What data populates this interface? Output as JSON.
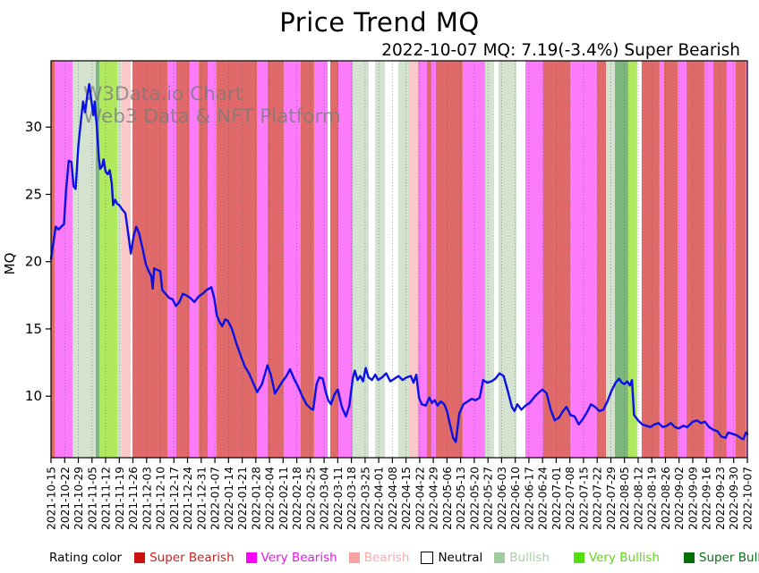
{
  "title": "Price Trend MQ",
  "subtitle": "2022-10-07 MQ: 7.19(-3.4%) Super Bearish",
  "watermark": {
    "line1": "W3Data.io Chart",
    "line2": "Web3 Data & NFT Platform"
  },
  "legend": {
    "lead_label": "Rating color",
    "items": [
      {
        "id": "super_bearish",
        "label": "Super Bearish",
        "swatch": "#cc1111",
        "text_color": "#cc2222",
        "band_fill": "#e06a6a",
        "swatch_border": "none"
      },
      {
        "id": "very_bearish",
        "label": "Very Bearish",
        "swatch": "#ff00ff",
        "text_color": "#ee11ee",
        "band_fill": "#fb7bfb",
        "swatch_border": "none"
      },
      {
        "id": "bearish",
        "label": "Bearish",
        "swatch": "#f9a3a3",
        "text_color": "#f9aaaa",
        "band_fill": "#fbc8c8",
        "swatch_border": "none"
      },
      {
        "id": "neutral",
        "label": "Neutral",
        "swatch": "#ffffff",
        "text_color": "#000000",
        "band_fill": "#ffffff",
        "swatch_border": "#000000"
      },
      {
        "id": "bullish",
        "label": "Bullish",
        "swatch": "#9fcb9f",
        "text_color": "#a9cfa9",
        "band_fill": "#d3e3d0",
        "swatch_border": "none"
      },
      {
        "id": "very_bullish",
        "label": "Very Bullish",
        "swatch": "#58dd0c",
        "text_color": "#63d61a",
        "band_fill": "#b0e95e",
        "swatch_border": "none"
      },
      {
        "id": "super_bullish",
        "label": "Super Bullish",
        "swatch": "#056d05",
        "text_color": "#0b6e1b",
        "band_fill": "#7db77d",
        "swatch_border": "none"
      }
    ]
  },
  "chart_data": {
    "type": "line",
    "title": "Price Trend MQ",
    "subtitle": "2022-10-07 MQ: 7.19(-3.4%) Super Bearish",
    "xlabel": "",
    "ylabel": "MQ",
    "yticks": [
      10,
      15,
      20,
      25,
      30
    ],
    "ylim": [
      5.4,
      34.9
    ],
    "grid": "vertical-dotted-weekly",
    "legend_position": "bottom",
    "latest": {
      "date": "2022-10-07",
      "mq": 7.19,
      "change_pct": -3.4,
      "rating": "Super Bearish"
    },
    "x_labels": [
      "2021-10-15",
      "2021-10-22",
      "2021-10-29",
      "2021-11-05",
      "2021-11-12",
      "2021-11-19",
      "2021-11-26",
      "2021-12-03",
      "2021-12-10",
      "2021-12-17",
      "2021-12-24",
      "2021-12-31",
      "2022-01-07",
      "2022-01-14",
      "2022-01-21",
      "2022-01-28",
      "2022-02-04",
      "2022-02-11",
      "2022-02-18",
      "2022-02-25",
      "2022-03-04",
      "2022-03-11",
      "2022-03-18",
      "2022-03-25",
      "2022-04-01",
      "2022-04-08",
      "2022-04-15",
      "2022-04-22",
      "2022-04-29",
      "2022-05-06",
      "2022-05-13",
      "2022-05-20",
      "2022-05-27",
      "2022-06-03",
      "2022-06-10",
      "2022-06-17",
      "2022-06-24",
      "2022-07-01",
      "2022-07-08",
      "2022-07-15",
      "2022-07-22",
      "2022-07-29",
      "2022-08-05",
      "2022-08-12",
      "2022-08-19",
      "2022-08-26",
      "2022-09-02",
      "2022-09-09",
      "2022-09-16",
      "2022-09-23",
      "2022-09-30",
      "2022-10-07"
    ],
    "bands": [
      [
        0,
        0.26,
        "super_bearish"
      ],
      [
        0.26,
        1.57,
        "very_bearish"
      ],
      [
        1.57,
        3.28,
        "bullish"
      ],
      [
        3.28,
        3.54,
        "super_bullish"
      ],
      [
        3.54,
        4.85,
        "very_bullish"
      ],
      [
        4.85,
        5.18,
        "bullish"
      ],
      [
        5.18,
        5.84,
        "bearish"
      ],
      [
        5.84,
        5.97,
        "neutral"
      ],
      [
        5.97,
        8.52,
        "super_bearish"
      ],
      [
        8.52,
        9.18,
        "very_bearish"
      ],
      [
        9.18,
        10.16,
        "super_bearish"
      ],
      [
        10.16,
        10.82,
        "very_bearish"
      ],
      [
        10.82,
        11.47,
        "super_bearish"
      ],
      [
        11.47,
        12.13,
        "very_bearish"
      ],
      [
        12.13,
        15.08,
        "super_bearish"
      ],
      [
        15.08,
        15.86,
        "very_bearish"
      ],
      [
        15.86,
        17.04,
        "super_bearish"
      ],
      [
        17.04,
        18.29,
        "very_bearish"
      ],
      [
        18.29,
        19.27,
        "super_bearish"
      ],
      [
        19.27,
        20.26,
        "very_bearish"
      ],
      [
        20.26,
        20.45,
        "neutral"
      ],
      [
        20.45,
        21.04,
        "super_bearish"
      ],
      [
        21.04,
        22.09,
        "very_bearish"
      ],
      [
        22.09,
        23.27,
        "bullish"
      ],
      [
        23.27,
        23.73,
        "neutral"
      ],
      [
        23.73,
        24.45,
        "bullish"
      ],
      [
        24.45,
        25.43,
        "neutral"
      ],
      [
        25.43,
        26.22,
        "bullish"
      ],
      [
        26.22,
        26.87,
        "bearish"
      ],
      [
        26.87,
        27.53,
        "very_bearish"
      ],
      [
        27.53,
        27.86,
        "super_bearish"
      ],
      [
        27.86,
        28.19,
        "very_bearish"
      ],
      [
        28.19,
        30.15,
        "super_bearish"
      ],
      [
        30.15,
        31.79,
        "very_bearish"
      ],
      [
        31.79,
        32.45,
        "bullish"
      ],
      [
        32.45,
        32.77,
        "neutral"
      ],
      [
        32.77,
        34.09,
        "bullish"
      ],
      [
        34.09,
        34.74,
        "neutral"
      ],
      [
        34.74,
        36.05,
        "very_bearish"
      ],
      [
        36.05,
        38.02,
        "super_bearish"
      ],
      [
        38.02,
        39.98,
        "very_bearish"
      ],
      [
        39.98,
        40.64,
        "super_bearish"
      ],
      [
        40.64,
        41.3,
        "bullish"
      ],
      [
        41.3,
        42.28,
        "super_bullish"
      ],
      [
        42.28,
        42.93,
        "very_bullish"
      ],
      [
        42.93,
        43.26,
        "neutral"
      ],
      [
        43.26,
        44.57,
        "super_bearish"
      ],
      [
        44.57,
        44.9,
        "very_bearish"
      ],
      [
        44.9,
        45.89,
        "super_bearish"
      ],
      [
        45.89,
        46.54,
        "very_bearish"
      ],
      [
        46.54,
        47.85,
        "super_bearish"
      ],
      [
        47.85,
        48.51,
        "very_bearish"
      ],
      [
        48.51,
        49.49,
        "super_bearish"
      ],
      [
        49.49,
        50.15,
        "very_bearish"
      ],
      [
        50.15,
        50.87,
        "super_bearish"
      ],
      [
        50.87,
        51,
        "very_bearish"
      ]
    ],
    "series": [
      {
        "name": "MQ",
        "color": "#0a10e6",
        "points": [
          [
            0,
            20.2
          ],
          [
            0.2,
            21.6
          ],
          [
            0.35,
            22.6
          ],
          [
            0.55,
            22.4
          ],
          [
            0.75,
            22.6
          ],
          [
            0.95,
            22.8
          ],
          [
            1.1,
            25.3
          ],
          [
            1.3,
            27.5
          ],
          [
            1.5,
            27.4
          ],
          [
            1.65,
            25.6
          ],
          [
            1.8,
            25.4
          ],
          [
            2.0,
            28.6
          ],
          [
            2.2,
            30.6
          ],
          [
            2.35,
            31.9
          ],
          [
            2.5,
            31.1
          ],
          [
            2.65,
            32.3
          ],
          [
            2.8,
            33.2
          ],
          [
            2.95,
            32.0
          ],
          [
            3.1,
            30.9
          ],
          [
            3.2,
            31.9
          ],
          [
            3.35,
            30.1
          ],
          [
            3.5,
            27.7
          ],
          [
            3.6,
            26.9
          ],
          [
            3.75,
            27.1
          ],
          [
            3.85,
            27.6
          ],
          [
            4.0,
            26.7
          ],
          [
            4.15,
            26.5
          ],
          [
            4.3,
            26.8
          ],
          [
            4.45,
            25.8
          ],
          [
            4.55,
            24.2
          ],
          [
            4.7,
            24.6
          ],
          [
            4.85,
            24.3
          ],
          [
            5.0,
            24.2
          ],
          [
            5.2,
            23.9
          ],
          [
            5.45,
            23.6
          ],
          [
            5.65,
            22.1
          ],
          [
            5.85,
            20.6
          ],
          [
            6.05,
            21.9
          ],
          [
            6.25,
            22.6
          ],
          [
            6.45,
            22.1
          ],
          [
            6.7,
            21.0
          ],
          [
            6.95,
            19.8
          ],
          [
            7.15,
            19.3
          ],
          [
            7.35,
            18.9
          ],
          [
            7.45,
            18.0
          ],
          [
            7.55,
            19.5
          ],
          [
            7.75,
            19.4
          ],
          [
            8.0,
            19.3
          ],
          [
            8.15,
            17.9
          ],
          [
            8.4,
            17.6
          ],
          [
            8.65,
            17.3
          ],
          [
            8.9,
            17.2
          ],
          [
            9.15,
            16.7
          ],
          [
            9.4,
            17.0
          ],
          [
            9.65,
            17.6
          ],
          [
            9.9,
            17.5
          ],
          [
            10.2,
            17.3
          ],
          [
            10.5,
            17.0
          ],
          [
            10.8,
            17.4
          ],
          [
            11.1,
            17.6
          ],
          [
            11.4,
            17.9
          ],
          [
            11.75,
            18.1
          ],
          [
            11.95,
            17.3
          ],
          [
            12.15,
            16.0
          ],
          [
            12.35,
            15.5
          ],
          [
            12.55,
            15.2
          ],
          [
            12.75,
            15.7
          ],
          [
            12.95,
            15.6
          ],
          [
            13.25,
            15.0
          ],
          [
            13.55,
            14.0
          ],
          [
            13.9,
            13.0
          ],
          [
            14.2,
            12.2
          ],
          [
            14.5,
            11.7
          ],
          [
            14.8,
            11.0
          ],
          [
            15.1,
            10.3
          ],
          [
            15.45,
            10.9
          ],
          [
            15.85,
            12.3
          ],
          [
            16.1,
            11.6
          ],
          [
            16.4,
            10.2
          ],
          [
            16.7,
            10.7
          ],
          [
            16.95,
            11.1
          ],
          [
            17.25,
            11.5
          ],
          [
            17.5,
            12.0
          ],
          [
            17.8,
            11.3
          ],
          [
            18.1,
            10.7
          ],
          [
            18.4,
            10.0
          ],
          [
            18.7,
            9.4
          ],
          [
            19.0,
            9.1
          ],
          [
            19.2,
            9.0
          ],
          [
            19.45,
            10.9
          ],
          [
            19.65,
            11.4
          ],
          [
            19.9,
            11.3
          ],
          [
            20.1,
            10.4
          ],
          [
            20.3,
            9.7
          ],
          [
            20.5,
            9.4
          ],
          [
            20.75,
            10.1
          ],
          [
            21.0,
            10.5
          ],
          [
            21.3,
            9.2
          ],
          [
            21.6,
            8.5
          ],
          [
            21.85,
            9.3
          ],
          [
            22.1,
            11.3
          ],
          [
            22.25,
            11.9
          ],
          [
            22.45,
            11.2
          ],
          [
            22.65,
            11.5
          ],
          [
            22.85,
            11.1
          ],
          [
            23.05,
            12.1
          ],
          [
            23.25,
            11.4
          ],
          [
            23.5,
            11.2
          ],
          [
            23.75,
            11.6
          ],
          [
            23.95,
            11.2
          ],
          [
            24.25,
            11.4
          ],
          [
            24.55,
            11.7
          ],
          [
            24.85,
            11.1
          ],
          [
            25.15,
            11.3
          ],
          [
            25.45,
            11.5
          ],
          [
            25.75,
            11.2
          ],
          [
            26.05,
            11.4
          ],
          [
            26.35,
            11.5
          ],
          [
            26.55,
            11.0
          ],
          [
            26.75,
            11.6
          ],
          [
            26.95,
            9.9
          ],
          [
            27.15,
            9.4
          ],
          [
            27.45,
            9.3
          ],
          [
            27.7,
            9.9
          ],
          [
            27.9,
            9.5
          ],
          [
            28.1,
            9.7
          ],
          [
            28.3,
            9.3
          ],
          [
            28.55,
            9.6
          ],
          [
            28.8,
            9.4
          ],
          [
            29.0,
            8.9
          ],
          [
            29.2,
            8.0
          ],
          [
            29.45,
            6.9
          ],
          [
            29.65,
            6.6
          ],
          [
            29.9,
            8.7
          ],
          [
            30.2,
            9.4
          ],
          [
            30.5,
            9.6
          ],
          [
            30.8,
            9.8
          ],
          [
            31.1,
            9.7
          ],
          [
            31.4,
            9.9
          ],
          [
            31.65,
            11.2
          ],
          [
            31.95,
            11.0
          ],
          [
            32.25,
            11.1
          ],
          [
            32.55,
            11.3
          ],
          [
            32.85,
            11.7
          ],
          [
            33.15,
            11.5
          ],
          [
            33.45,
            10.4
          ],
          [
            33.75,
            9.2
          ],
          [
            33.95,
            8.9
          ],
          [
            34.15,
            9.4
          ],
          [
            34.45,
            9.0
          ],
          [
            34.75,
            9.3
          ],
          [
            35.05,
            9.5
          ],
          [
            35.45,
            10.0
          ],
          [
            35.75,
            10.3
          ],
          [
            36.0,
            10.5
          ],
          [
            36.3,
            10.2
          ],
          [
            36.6,
            9.0
          ],
          [
            36.9,
            8.2
          ],
          [
            37.2,
            8.4
          ],
          [
            37.5,
            8.9
          ],
          [
            37.75,
            9.2
          ],
          [
            38.05,
            8.6
          ],
          [
            38.35,
            8.5
          ],
          [
            38.65,
            7.9
          ],
          [
            38.95,
            8.3
          ],
          [
            39.25,
            8.8
          ],
          [
            39.55,
            9.4
          ],
          [
            39.85,
            9.2
          ],
          [
            40.15,
            8.9
          ],
          [
            40.45,
            9.0
          ],
          [
            40.75,
            9.6
          ],
          [
            41.05,
            10.4
          ],
          [
            41.35,
            11.0
          ],
          [
            41.6,
            11.3
          ],
          [
            41.8,
            11.0
          ],
          [
            42.0,
            10.9
          ],
          [
            42.2,
            11.1
          ],
          [
            42.4,
            10.8
          ],
          [
            42.55,
            11.2
          ],
          [
            42.7,
            8.6
          ],
          [
            43.0,
            8.2
          ],
          [
            43.3,
            7.9
          ],
          [
            43.6,
            7.8
          ],
          [
            43.9,
            7.7
          ],
          [
            44.2,
            7.9
          ],
          [
            44.5,
            8.0
          ],
          [
            44.8,
            7.7
          ],
          [
            45.1,
            7.8
          ],
          [
            45.4,
            8.0
          ],
          [
            45.7,
            7.7
          ],
          [
            46.0,
            7.6
          ],
          [
            46.3,
            7.8
          ],
          [
            46.6,
            7.7
          ],
          [
            47.0,
            8.1
          ],
          [
            47.3,
            8.2
          ],
          [
            47.6,
            8.0
          ],
          [
            47.9,
            8.1
          ],
          [
            48.2,
            7.7
          ],
          [
            48.5,
            7.5
          ],
          [
            48.8,
            7.4
          ],
          [
            49.1,
            7.0
          ],
          [
            49.4,
            6.9
          ],
          [
            49.6,
            7.3
          ],
          [
            49.9,
            7.2
          ],
          [
            50.2,
            7.1
          ],
          [
            50.5,
            6.9
          ],
          [
            50.7,
            6.8
          ],
          [
            50.9,
            7.3
          ],
          [
            51,
            7.19
          ]
        ]
      }
    ]
  }
}
